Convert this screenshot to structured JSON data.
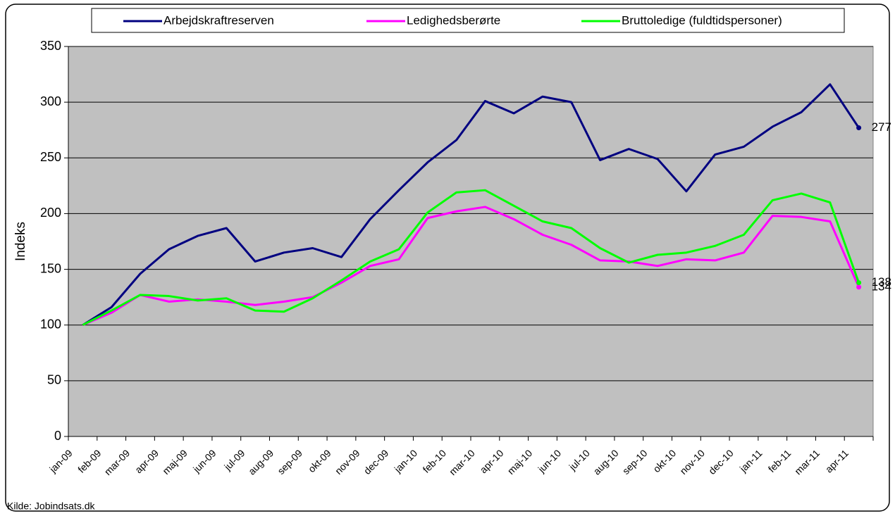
{
  "chart_data": {
    "type": "line",
    "y_label": "Indeks",
    "source": "Kilde: Jobindsats.dk",
    "categories": [
      "jan-09",
      "feb-09",
      "mar-09",
      "apr-09",
      "maj-09",
      "jun-09",
      "jul-09",
      "aug-09",
      "sep-09",
      "okt-09",
      "nov-09",
      "dec-09",
      "jan-10",
      "feb-10",
      "mar-10",
      "apr-10",
      "maj-10",
      "jun-10",
      "jul-10",
      "aug-10",
      "sep-10",
      "okt-10",
      "nov-10",
      "dec-10",
      "jan-11",
      "feb-11",
      "mar-11",
      "apr-11"
    ],
    "series": [
      {
        "name": "Arbejdskraftreserven",
        "color": "#000080",
        "values": [
          100,
          116,
          146,
          168,
          180,
          187,
          157,
          165,
          169,
          161,
          195,
          221,
          246,
          266,
          301,
          290,
          305,
          300,
          248,
          258,
          249,
          220,
          253,
          260,
          278,
          291,
          316,
          277
        ]
      },
      {
        "name": "Ledighedsberørte",
        "color": "#ff00ff",
        "values": [
          100,
          111,
          127,
          121,
          123,
          121,
          118,
          121,
          125,
          138,
          153,
          159,
          196,
          202,
          206,
          195,
          181,
          172,
          158,
          157,
          153,
          159,
          158,
          165,
          198,
          197,
          193,
          134
        ]
      },
      {
        "name": "Bruttoledige (fuldtidspersoner)",
        "color": "#00ff00",
        "values": [
          100,
          113,
          127,
          126,
          122,
          124,
          113,
          112,
          124,
          140,
          157,
          168,
          201,
          219,
          221,
          207,
          193,
          187,
          169,
          156,
          163,
          165,
          171,
          181,
          212,
          218,
          210,
          138
        ]
      }
    ],
    "ylim": [
      0,
      350
    ],
    "yticks": [
      0,
      50,
      100,
      150,
      200,
      250,
      300,
      350
    ],
    "grid": true,
    "plot_background": "#c0c0c0",
    "legend_position": "top"
  }
}
